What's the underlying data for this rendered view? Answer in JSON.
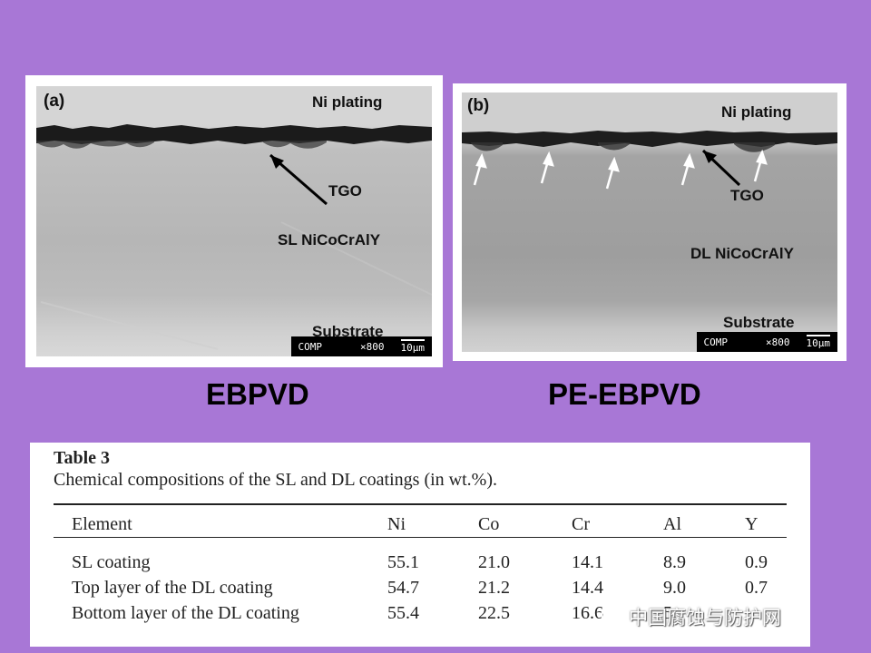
{
  "panel_a": {
    "letter": "(a)",
    "labels": {
      "top": "Ni plating",
      "oxide": "TGO",
      "coating": "SL NiCoCrAlY",
      "base": "Substrate"
    },
    "scalebar": {
      "mode": "COMP",
      "mag": "×800",
      "length": "10µm"
    }
  },
  "panel_b": {
    "letter": "(b)",
    "labels": {
      "top": "Ni plating",
      "oxide": "TGO",
      "coating": "DL NiCoCrAlY",
      "base": "Substrate"
    },
    "scalebar": {
      "mode": "COMP",
      "mag": "×800",
      "length": "10µm"
    }
  },
  "captions": {
    "left": "EBPVD",
    "right": "PE-EBPVD"
  },
  "table": {
    "title": "Table 3",
    "caption": "Chemical compositions of the SL and DL coatings (in wt.%).",
    "headers": [
      "Element",
      "Ni",
      "Co",
      "Cr",
      "Al",
      "Y"
    ],
    "rows": [
      [
        "SL coating",
        "55.1",
        "21.0",
        "14.1",
        "8.9",
        "0.9"
      ],
      [
        "Top layer of the DL coating",
        "54.7",
        "21.2",
        "14.4",
        "9.0",
        "0.7"
      ],
      [
        "Bottom layer of the DL coating",
        "55.4",
        "22.5",
        "16.6",
        "5.",
        ""
      ]
    ]
  },
  "watermark": {
    "text": "中国腐蚀与防护网",
    "icon": "wechat-icon"
  }
}
